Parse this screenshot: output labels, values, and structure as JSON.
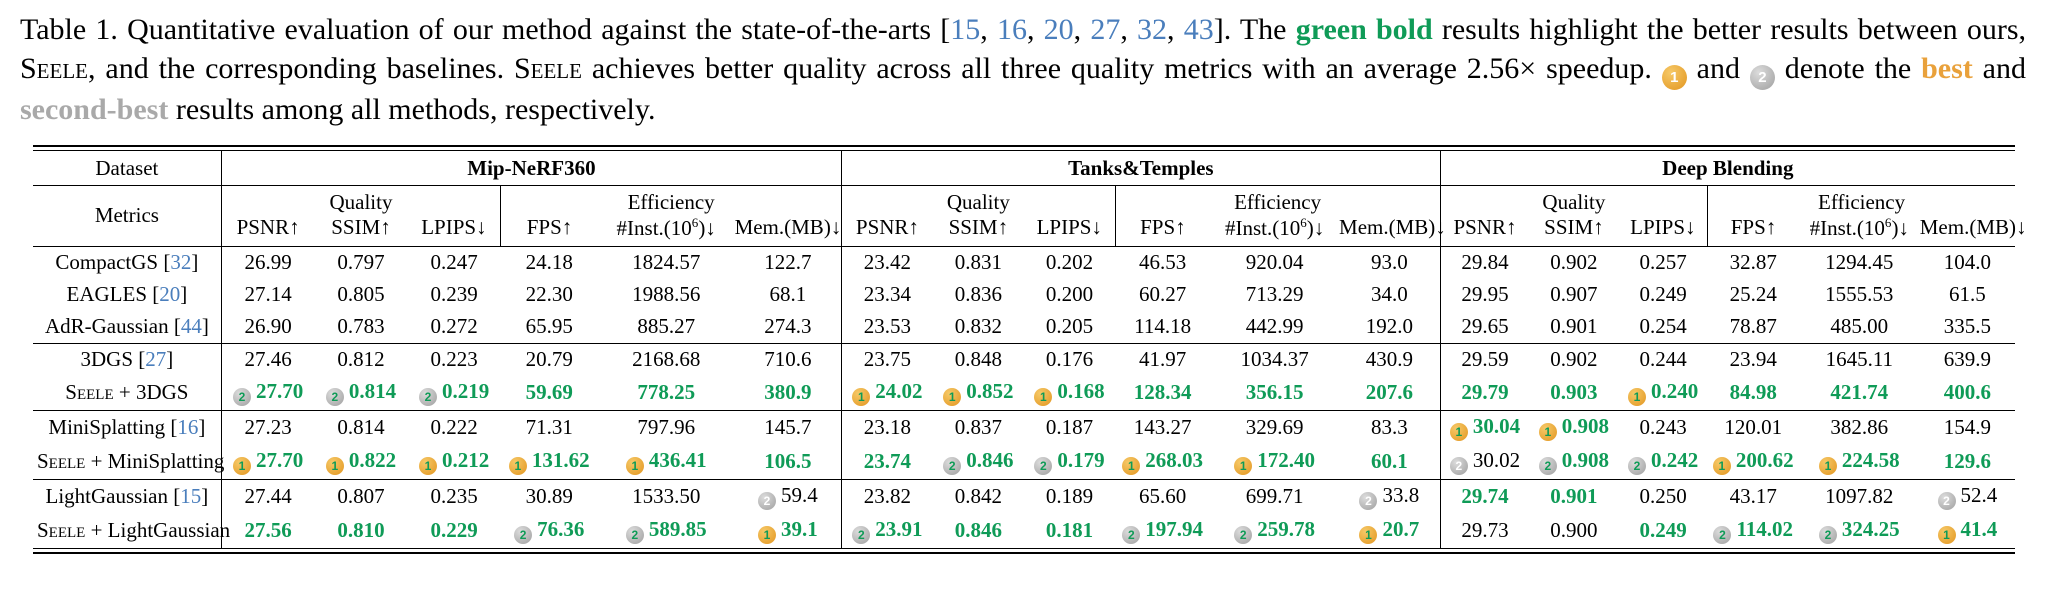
{
  "colors": {
    "green_highlight": "#0f9b57",
    "best_orange": "#e9a13b",
    "second_gray": "#a9a9a9",
    "badge_gold": "#e2951f",
    "badge_gray": "#9e9e9e",
    "citation_blue": "#4a7ebc"
  },
  "badges": {
    "best": "1",
    "second": "2"
  },
  "caption": {
    "segments": [
      {
        "t": "Table 1.  Quantitative evaluation of our method against the state-of-the-arts ["
      },
      {
        "t": "15",
        "s": "cite"
      },
      {
        "t": ", "
      },
      {
        "t": "16",
        "s": "cite"
      },
      {
        "t": ", "
      },
      {
        "t": "20",
        "s": "cite"
      },
      {
        "t": ", "
      },
      {
        "t": "27",
        "s": "cite"
      },
      {
        "t": ", "
      },
      {
        "t": "32",
        "s": "cite"
      },
      {
        "t": ", "
      },
      {
        "t": "43",
        "s": "cite"
      },
      {
        "t": "].  The "
      },
      {
        "t": "green bold",
        "s": "green"
      },
      {
        "t": " results highlight the better results between ours, "
      },
      {
        "t": "Seele",
        "s": "sc"
      },
      {
        "t": ", and the corresponding baselines. "
      },
      {
        "t": "Seele",
        "s": "sc"
      },
      {
        "t": " achieves better quality across all three quality metrics with an average 2.56× speedup. "
      },
      {
        "badge": "best"
      },
      {
        "t": " and "
      },
      {
        "badge": "second"
      },
      {
        "t": " denote the "
      },
      {
        "t": "best",
        "s": "orange"
      },
      {
        "t": " and "
      },
      {
        "t": "second-best",
        "s": "gray"
      },
      {
        "t": " results among all methods, respectively."
      }
    ]
  },
  "table": {
    "corner": {
      "dataset": "Dataset",
      "metrics": "Metrics"
    },
    "datasets": [
      "Mip-NeRF360",
      "Tanks&Temples",
      "Deep Blending"
    ],
    "subgroups": {
      "quality": "Quality",
      "efficiency": "Efficiency"
    },
    "metric_cols": [
      "PSNR↑",
      "SSIM↑",
      "LPIPS↓",
      "FPS↑",
      {
        "pre": "#Inst.(10",
        "sup": "6",
        "post": ")↓"
      },
      "Mem.(MB)↓"
    ],
    "groups": [
      {
        "rows": [
          {
            "label": {
              "name": "CompactGS",
              "cite": "32"
            },
            "cells": [
              "26.99",
              "0.797",
              "0.247",
              "24.18",
              "1824.57",
              "122.7",
              "23.42",
              "0.831",
              "0.202",
              "46.53",
              "920.04",
              "93.0",
              "29.84",
              "0.902",
              "0.257",
              "32.87",
              "1294.45",
              "104.0"
            ]
          },
          {
            "label": {
              "name": "EAGLES",
              "cite": "20"
            },
            "cells": [
              "27.14",
              "0.805",
              "0.239",
              "22.30",
              "1988.56",
              "68.1",
              "23.34",
              "0.836",
              "0.200",
              "60.27",
              "713.29",
              "34.0",
              "29.95",
              "0.907",
              "0.249",
              "25.24",
              "1555.53",
              "61.5"
            ]
          },
          {
            "label": {
              "name": "AdR-Gaussian",
              "cite": "44"
            },
            "cells": [
              "26.90",
              "0.783",
              "0.272",
              "65.95",
              "885.27",
              "274.3",
              "23.53",
              "0.832",
              "0.205",
              "114.18",
              "442.99",
              "192.0",
              "29.65",
              "0.901",
              "0.254",
              "78.87",
              "485.00",
              "335.5"
            ]
          }
        ]
      },
      {
        "rows": [
          {
            "label": {
              "name": "3DGS",
              "cite": "27"
            },
            "cells": [
              "27.46",
              "0.812",
              "0.223",
              "20.79",
              "2168.68",
              "710.6",
              "23.75",
              "0.848",
              "0.176",
              "41.97",
              "1034.37",
              "430.9",
              "29.59",
              "0.902",
              "0.244",
              "23.94",
              "1645.11",
              "639.9"
            ]
          },
          {
            "label": {
              "sc": "Seele",
              "name": " + 3DGS"
            },
            "cells": [
              {
                "t": "27.70",
                "g": 1,
                "b": 2
              },
              {
                "t": "0.814",
                "g": 1,
                "b": 2
              },
              {
                "t": "0.219",
                "g": 1,
                "b": 2
              },
              {
                "t": "59.69",
                "g": 1
              },
              {
                "t": "778.25",
                "g": 1
              },
              {
                "t": "380.9",
                "g": 1
              },
              {
                "t": "24.02",
                "g": 1,
                "b": 1
              },
              {
                "t": "0.852",
                "g": 1,
                "b": 1
              },
              {
                "t": "0.168",
                "g": 1,
                "b": 1
              },
              {
                "t": "128.34",
                "g": 1
              },
              {
                "t": "356.15",
                "g": 1
              },
              {
                "t": "207.6",
                "g": 1
              },
              {
                "t": "29.79",
                "g": 1
              },
              {
                "t": "0.903",
                "g": 1
              },
              {
                "t": "0.240",
                "g": 1,
                "b": 1
              },
              {
                "t": "84.98",
                "g": 1
              },
              {
                "t": "421.74",
                "g": 1
              },
              {
                "t": "400.6",
                "g": 1
              }
            ]
          }
        ]
      },
      {
        "rows": [
          {
            "label": {
              "name": "MiniSplatting",
              "cite": "16"
            },
            "cells": [
              "27.23",
              "0.814",
              "0.222",
              "71.31",
              "797.96",
              "145.7",
              "23.18",
              "0.837",
              "0.187",
              "143.27",
              "329.69",
              "83.3",
              {
                "t": "30.04",
                "g": 1,
                "b": 1
              },
              {
                "t": "0.908",
                "g": 1,
                "b": 1
              },
              "0.243",
              "120.01",
              "382.86",
              "154.9"
            ]
          },
          {
            "label": {
              "sc": "Seele",
              "name": " + MiniSplatting"
            },
            "cells": [
              {
                "t": "27.70",
                "g": 1,
                "b": 1
              },
              {
                "t": "0.822",
                "g": 1,
                "b": 1
              },
              {
                "t": "0.212",
                "g": 1,
                "b": 1
              },
              {
                "t": "131.62",
                "g": 1,
                "b": 1
              },
              {
                "t": "436.41",
                "g": 1,
                "b": 1
              },
              {
                "t": "106.5",
                "g": 1
              },
              {
                "t": "23.74",
                "g": 1
              },
              {
                "t": "0.846",
                "g": 1,
                "b": 2
              },
              {
                "t": "0.179",
                "g": 1,
                "b": 2
              },
              {
                "t": "268.03",
                "g": 1,
                "b": 1
              },
              {
                "t": "172.40",
                "g": 1,
                "b": 1
              },
              {
                "t": "60.1",
                "g": 1
              },
              {
                "t": "30.02",
                "b": 2
              },
              {
                "t": "0.908",
                "g": 1,
                "b": 2
              },
              {
                "t": "0.242",
                "g": 1,
                "b": 2
              },
              {
                "t": "200.62",
                "g": 1,
                "b": 1
              },
              {
                "t": "224.58",
                "g": 1,
                "b": 1
              },
              {
                "t": "129.6",
                "g": 1
              }
            ]
          }
        ]
      },
      {
        "rows": [
          {
            "label": {
              "name": "LightGaussian",
              "cite": "15"
            },
            "cells": [
              "27.44",
              "0.807",
              "0.235",
              "30.89",
              "1533.50",
              {
                "t": "59.4",
                "b": 2
              },
              "23.82",
              "0.842",
              "0.189",
              "65.60",
              "699.71",
              {
                "t": "33.8",
                "b": 2
              },
              {
                "t": "29.74",
                "g": 1
              },
              {
                "t": "0.901",
                "g": 1
              },
              "0.250",
              "43.17",
              "1097.82",
              {
                "t": "52.4",
                "b": 2
              }
            ]
          },
          {
            "label": {
              "sc": "Seele",
              "name": " + LightGaussian"
            },
            "cells": [
              {
                "t": "27.56",
                "g": 1
              },
              {
                "t": "0.810",
                "g": 1
              },
              {
                "t": "0.229",
                "g": 1
              },
              {
                "t": "76.36",
                "g": 1,
                "b": 2
              },
              {
                "t": "589.85",
                "g": 1,
                "b": 2
              },
              {
                "t": "39.1",
                "g": 1,
                "b": 1
              },
              {
                "t": "23.91",
                "g": 1,
                "b": 2
              },
              {
                "t": "0.846",
                "g": 1
              },
              {
                "t": "0.181",
                "g": 1
              },
              {
                "t": "197.94",
                "g": 1,
                "b": 2
              },
              {
                "t": "259.78",
                "g": 1,
                "b": 2
              },
              {
                "t": "20.7",
                "g": 1,
                "b": 1
              },
              "29.73",
              "0.900",
              {
                "t": "0.249",
                "g": 1
              },
              {
                "t": "114.02",
                "g": 1,
                "b": 2
              },
              {
                "t": "324.25",
                "g": 1,
                "b": 2
              },
              {
                "t": "41.4",
                "g": 1,
                "b": 1
              }
            ]
          }
        ]
      }
    ]
  }
}
